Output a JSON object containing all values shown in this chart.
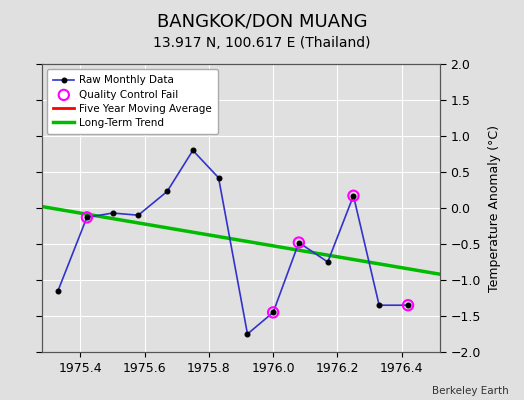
{
  "title": "BANGKOK/DON MUANG",
  "subtitle": "13.917 N, 100.617 E (Thailand)",
  "ylabel": "Temperature Anomaly (°C)",
  "credit": "Berkeley Earth",
  "xlim": [
    1975.28,
    1976.52
  ],
  "ylim": [
    -2,
    2
  ],
  "yticks": [
    -2,
    -1.5,
    -1,
    -0.5,
    0,
    0.5,
    1,
    1.5,
    2
  ],
  "xticks": [
    1975.4,
    1975.6,
    1975.8,
    1976.0,
    1976.2,
    1976.4
  ],
  "raw_x": [
    1975.33,
    1975.42,
    1975.5,
    1975.58,
    1975.67,
    1975.75,
    1975.83,
    1975.92,
    1976.0,
    1976.08,
    1976.17,
    1976.25,
    1976.33,
    1976.42
  ],
  "raw_y": [
    -1.15,
    -0.13,
    -0.07,
    -0.1,
    0.23,
    0.8,
    0.42,
    -1.75,
    -1.45,
    -0.48,
    -0.75,
    0.17,
    -1.35,
    -1.35
  ],
  "qc_fail_x": [
    1975.42,
    1976.0,
    1976.08,
    1976.25,
    1976.42
  ],
  "qc_fail_y": [
    -0.13,
    -1.45,
    -0.48,
    0.17,
    -1.35
  ],
  "trend_x": [
    1975.28,
    1976.52
  ],
  "trend_y": [
    0.02,
    -0.92
  ],
  "raw_color": "#3333cc",
  "raw_marker_color": "#000000",
  "qc_color": "#ff00ff",
  "trend_color": "#00bb00",
  "five_year_color": "#ff0000",
  "bg_color": "#e0e0e0",
  "plot_bg_color": "#e0e0e0",
  "grid_color": "#ffffff",
  "title_fontsize": 13,
  "subtitle_fontsize": 10,
  "label_fontsize": 9,
  "tick_fontsize": 9
}
